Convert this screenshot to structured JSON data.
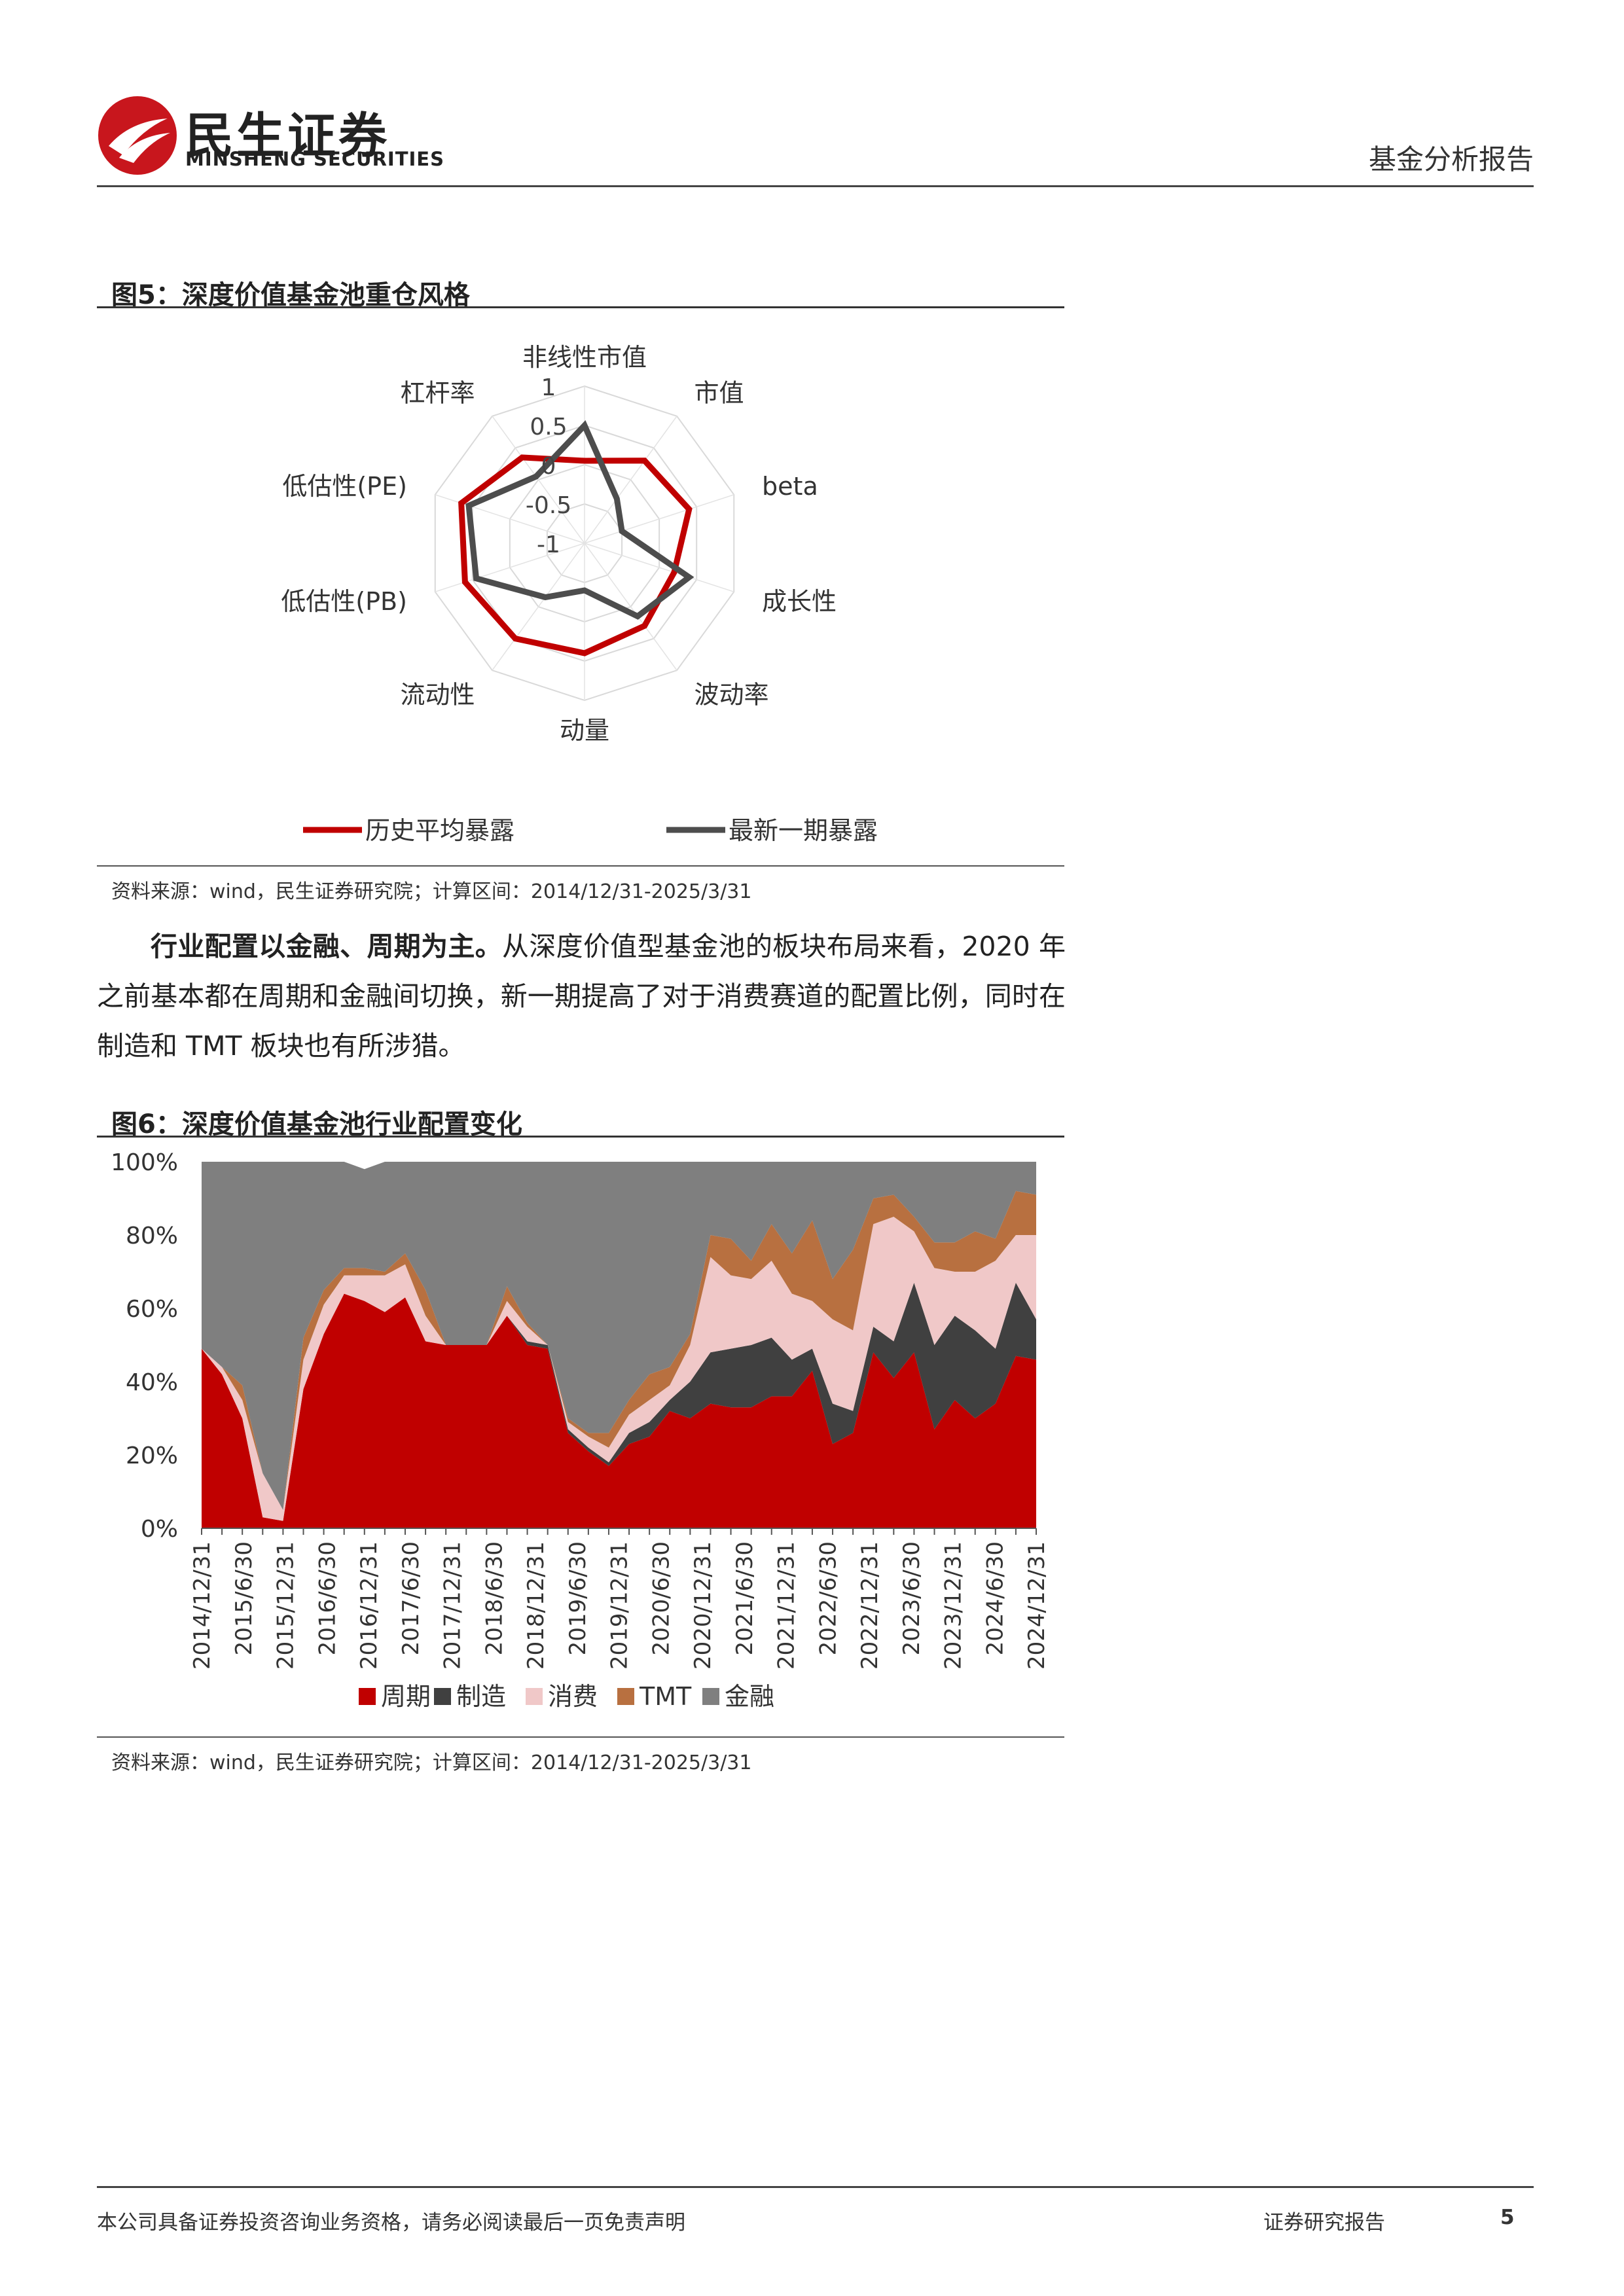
{
  "header": {
    "company_cn": "民生证券",
    "company_en": "MINSHENG SECURITIES",
    "report_type": "基金分析报告"
  },
  "figure5": {
    "title": "图5：深度价值基金池重仓风格",
    "source": "资料来源：wind，民生证券研究院；计算区间：2014/12/31-2025/3/31"
  },
  "figure6": {
    "title": "图6：深度价值基金池行业配置变化",
    "source": "资料来源：wind，民生证券研究院；计算区间：2014/12/31-2025/3/31"
  },
  "paragraph": {
    "lead": "行业配置以金融、周期为主。",
    "body": "从深度价值型基金池的板块布局来看，2020 年之前基本都在周期和金融间切换，新一期提高了对于消费赛道的配置比例，同时在制造和 TMT 板块也有所涉猎。"
  },
  "footer": {
    "disclaimer": "本公司具备证券投资咨询业务资格，请务必阅读最后一页免责声明",
    "doc_type": "证券研究报告",
    "page": "5"
  },
  "chart_data": [
    {
      "type": "radar",
      "axes": [
        "非线性市值",
        "市值",
        "beta",
        "成长性",
        "波动率",
        "动量",
        "流动性",
        "低估性(PB)",
        "低估性(PE)",
        "杠杆率"
      ],
      "rlim": [
        -1,
        1
      ],
      "ticks": [
        "1",
        "0.5",
        "0",
        "-0.5",
        "-1"
      ],
      "legend_position": "bottom",
      "series": [
        {
          "name": "历史平均暴露",
          "color": "#c00000",
          "values": [
            0.05,
            0.3,
            0.4,
            0.2,
            0.3,
            0.4,
            0.5,
            0.6,
            0.65,
            0.35
          ]
        },
        {
          "name": "最新一期暴露",
          "color": "#4d4d4d",
          "values": [
            0.5,
            -0.3,
            -0.5,
            0.4,
            0.15,
            -0.4,
            -0.15,
            0.45,
            0.55,
            0.05
          ]
        }
      ]
    },
    {
      "type": "area",
      "stacked": true,
      "ylim": [
        0,
        100
      ],
      "y_ticks": [
        "0%",
        "20%",
        "40%",
        "60%",
        "80%",
        "100%"
      ],
      "x_tick_labels": [
        "2014/12/31",
        "2015/6/30",
        "2015/12/31",
        "2016/6/30",
        "2016/12/31",
        "2017/6/30",
        "2017/12/31",
        "2018/6/30",
        "2018/12/31",
        "2019/6/30",
        "2019/12/31",
        "2020/6/30",
        "2020/12/31",
        "2021/6/30",
        "2021/12/31",
        "2022/6/30",
        "2022/12/31",
        "2023/6/30",
        "2023/12/31",
        "2024/6/30",
        "2024/12/31"
      ],
      "legend_position": "bottom",
      "series": [
        {
          "name": "周期",
          "color": "#c00000",
          "values": [
            49,
            42,
            30,
            3,
            2,
            38,
            53,
            64,
            62,
            59,
            63,
            51,
            50,
            50,
            50,
            58,
            50,
            49,
            26,
            21,
            17,
            23,
            25,
            32,
            30,
            34,
            33,
            33,
            36,
            36,
            43,
            23,
            26,
            48,
            41,
            48,
            27,
            35,
            30,
            34,
            47,
            46
          ]
        },
        {
          "name": "制造",
          "color": "#404040",
          "values": [
            0,
            0,
            0,
            0,
            0,
            0,
            0,
            0,
            0,
            0,
            0,
            0,
            0,
            0,
            0,
            0,
            1,
            1,
            1,
            1,
            1,
            3,
            4,
            3,
            10,
            14,
            16,
            17,
            16,
            10,
            6,
            11,
            6,
            7,
            10,
            19,
            23,
            23,
            24,
            15,
            20,
            11
          ]
        },
        {
          "name": "消费",
          "color": "#f0c8c8",
          "values": [
            0,
            2,
            5,
            12,
            3,
            8,
            8,
            5,
            7,
            10,
            9,
            7,
            0,
            0,
            0,
            4,
            4,
            0,
            2,
            3,
            4,
            5,
            6,
            4,
            10,
            26,
            20,
            18,
            21,
            18,
            13,
            23,
            22,
            28,
            34,
            14,
            21,
            12,
            16,
            24,
            13,
            23
          ]
        },
        {
          "name": "TMT",
          "color": "#b87040",
          "values": [
            0,
            0,
            4,
            0,
            0,
            6,
            4,
            2,
            2,
            1,
            3,
            7,
            0,
            0,
            0,
            4,
            1,
            0,
            1,
            1,
            4,
            4,
            7,
            5,
            3,
            6,
            10,
            5,
            10,
            11,
            22,
            11,
            22,
            7,
            6,
            4,
            7,
            8,
            11,
            6,
            12,
            11
          ]
        },
        {
          "name": "金融",
          "color": "#7f7f7f",
          "values": [
            51,
            56,
            61,
            85,
            95,
            48,
            35,
            29,
            27,
            30,
            25,
            35,
            50,
            50,
            50,
            34,
            44,
            50,
            70,
            74,
            74,
            65,
            58,
            56,
            47,
            20,
            21,
            27,
            17,
            25,
            16,
            32,
            24,
            10,
            9,
            15,
            22,
            22,
            19,
            21,
            8,
            9
          ]
        }
      ]
    }
  ]
}
